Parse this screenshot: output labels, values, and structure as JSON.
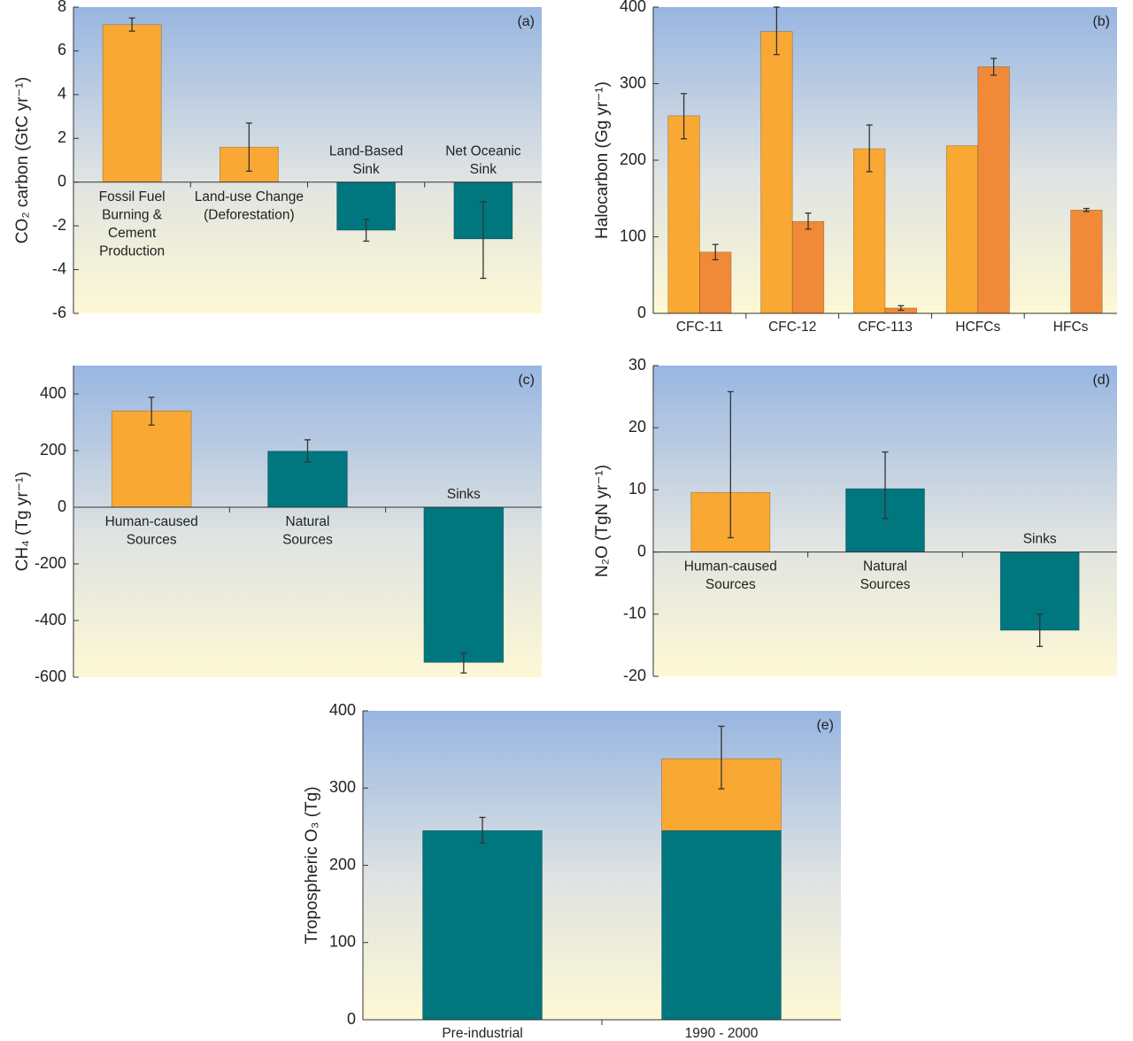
{
  "chart_data": [
    {
      "type": "bar",
      "panel_label": "(a)",
      "y_label": "CO₂ carbon (GtC yr⁻¹)",
      "categories": [
        [
          "Fossil Fuel",
          "Burning &",
          "Cement",
          "Production"
        ],
        [
          "Land-use Change",
          "(Deforestation)"
        ],
        [
          "Land-Based",
          "Sink"
        ],
        [
          "Net Oceanic",
          "Sink"
        ]
      ],
      "values": [
        7.2,
        1.6,
        -2.2,
        -2.6
      ],
      "error_lower": [
        6.9,
        0.5,
        -2.7,
        -4.4
      ],
      "error_upper": [
        7.5,
        2.7,
        -1.7,
        -0.9
      ],
      "colors": [
        "#f9a833",
        "#f9a833",
        "#00767f",
        "#00767f"
      ],
      "ylim": [
        -6,
        8
      ],
      "yticks": [
        -6,
        -4,
        -2,
        0,
        2,
        4,
        6,
        8
      ]
    },
    {
      "type": "bar",
      "panel_label": "(b)",
      "y_label": "Halocarbon (Gg yr⁻¹)",
      "categories": [
        [
          "CFC-11"
        ],
        [
          "CFC-12"
        ],
        [
          "CFC-113"
        ],
        [
          "HCFCs"
        ],
        [
          "HFCs"
        ]
      ],
      "series": [
        {
          "color": "#f9a833",
          "values": [
            258,
            368,
            215,
            219,
            null
          ],
          "error_lower": [
            228,
            338,
            185,
            null,
            null
          ],
          "error_upper": [
            287,
            400,
            246,
            null,
            null
          ]
        },
        {
          "color": "#f08a38",
          "values": [
            80,
            120,
            7,
            322,
            135
          ],
          "error_lower": [
            70,
            110,
            4,
            311,
            133
          ],
          "error_upper": [
            90,
            131,
            10,
            333,
            137
          ]
        }
      ],
      "ylim": [
        0,
        400
      ],
      "yticks": [
        0,
        100,
        200,
        300,
        400
      ]
    },
    {
      "type": "bar",
      "panel_label": "(c)",
      "y_label": "CH₄ (Tg yr⁻¹)",
      "categories": [
        [
          "Human-caused",
          "Sources"
        ],
        [
          "Natural",
          "Sources"
        ],
        [
          "Sinks"
        ]
      ],
      "values": [
        340,
        198,
        -548
      ],
      "error_lower": [
        290,
        160,
        -585
      ],
      "error_upper": [
        388,
        238,
        -515
      ],
      "colors": [
        "#f9a833",
        "#00767f",
        "#00767f"
      ],
      "ylim": [
        -600,
        500
      ],
      "yticks": [
        -600,
        -400,
        -200,
        0,
        200,
        400
      ]
    },
    {
      "type": "bar",
      "panel_label": "(d)",
      "y_label": "N₂O (TgN yr⁻¹)",
      "categories": [
        [
          "Human-caused",
          "Sources"
        ],
        [
          "Natural",
          "Sources"
        ],
        [
          "Sinks"
        ]
      ],
      "values": [
        9.6,
        10.2,
        -12.6
      ],
      "error_lower": [
        2.3,
        5.4,
        -15.2
      ],
      "error_upper": [
        25.8,
        16.1,
        -10
      ],
      "colors": [
        "#f9a833",
        "#00767f",
        "#00767f"
      ],
      "ylim": [
        -20,
        30
      ],
      "yticks": [
        -20,
        -10,
        0,
        10,
        20,
        30
      ]
    },
    {
      "type": "stacked-bar",
      "panel_label": "(e)",
      "y_label": "Tropospheric O₃ (Tg)",
      "categories": [
        [
          "Pre-industrial"
        ],
        [
          "1990 - 2000"
        ]
      ],
      "series": [
        {
          "color": "#00767f",
          "values": [
            245,
            245
          ],
          "error_lower": [
            229,
            null
          ],
          "error_upper": [
            262,
            null
          ]
        },
        {
          "color": "#f9a833",
          "values": [
            null,
            93
          ],
          "error_lower": [
            null,
            299
          ],
          "error_upper": [
            null,
            380
          ]
        }
      ],
      "ylim": [
        0,
        400
      ],
      "yticks": [
        0,
        100,
        200,
        300,
        400
      ]
    }
  ]
}
